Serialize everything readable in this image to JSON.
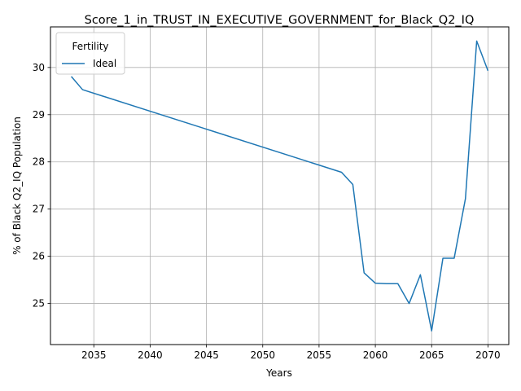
{
  "chart_data": {
    "type": "line",
    "title": "Score_1_in_TRUST_IN_EXECUTIVE_GOVERNMENT_for_Black_Q2_IQ",
    "xlabel": "Years",
    "ylabel": "% of Black Q2_IQ Population",
    "xlim": [
      2031.15,
      2071.85
    ],
    "ylim": [
      24.13,
      30.86
    ],
    "xticks": [
      2035,
      2040,
      2045,
      2050,
      2055,
      2060,
      2065,
      2070
    ],
    "yticks": [
      25,
      26,
      27,
      28,
      29,
      30
    ],
    "grid": true,
    "legend": {
      "title": "Fertility",
      "placement": "top-left"
    },
    "series": [
      {
        "name": "Ideal",
        "color": "#1f77b4",
        "x": [
          2033,
          2034,
          2057,
          2058,
          2059,
          2060,
          2061,
          2062,
          2063,
          2064,
          2065,
          2066,
          2067,
          2068,
          2069,
          2070
        ],
        "y": [
          29.81,
          29.53,
          27.78,
          27.52,
          25.65,
          25.43,
          25.42,
          25.42,
          25.0,
          25.61,
          24.42,
          25.96,
          25.96,
          27.22,
          30.56,
          29.93
        ]
      }
    ]
  }
}
